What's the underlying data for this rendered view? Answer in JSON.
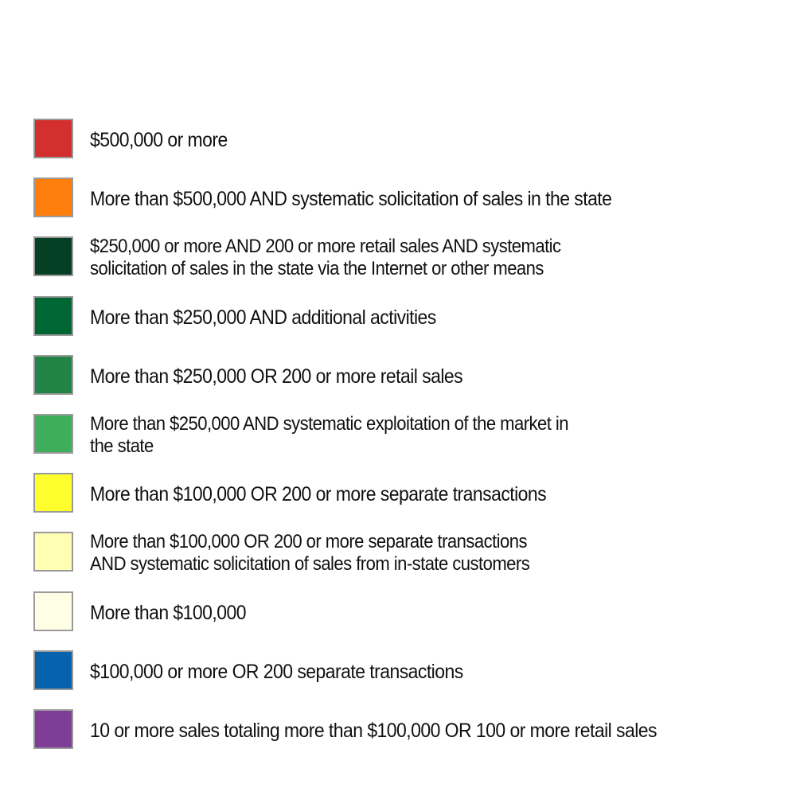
{
  "legend": {
    "items": [
      {
        "color": "#d32f2f",
        "label": "$500,000 or more"
      },
      {
        "color": "#ff7f0e",
        "label": "More than $500,000 AND systematic solicitation of sales in the state"
      },
      {
        "color": "#053f24",
        "label": "$250,000 or more AND 200 or more retail sales AND systematic\nsolicitation of sales in the state via the Internet or other means"
      },
      {
        "color": "#006633",
        "label": "More than $250,000 AND additional activities"
      },
      {
        "color": "#218345",
        "label": "More than $250,000 OR 200 or more retail sales"
      },
      {
        "color": "#3fae5c",
        "label": "More than $250,000 AND systematic exploitation of the market in\nthe state"
      },
      {
        "color": "#ffff2e",
        "label": "More than $100,000 OR 200 or more separate transactions"
      },
      {
        "color": "#ffffb3",
        "label": "More than $100,000 OR 200 or more separate transactions\nAND systematic solicitation of sales from in-state customers"
      },
      {
        "color": "#ffffe6",
        "label": "More than $100,000"
      },
      {
        "color": "#0762ad",
        "label": "$100,000 or more OR 200 separate transactions"
      },
      {
        "color": "#7e3e98",
        "label": "10 or more sales totaling more than $100,000 OR 100 or more retail sales"
      }
    ]
  }
}
